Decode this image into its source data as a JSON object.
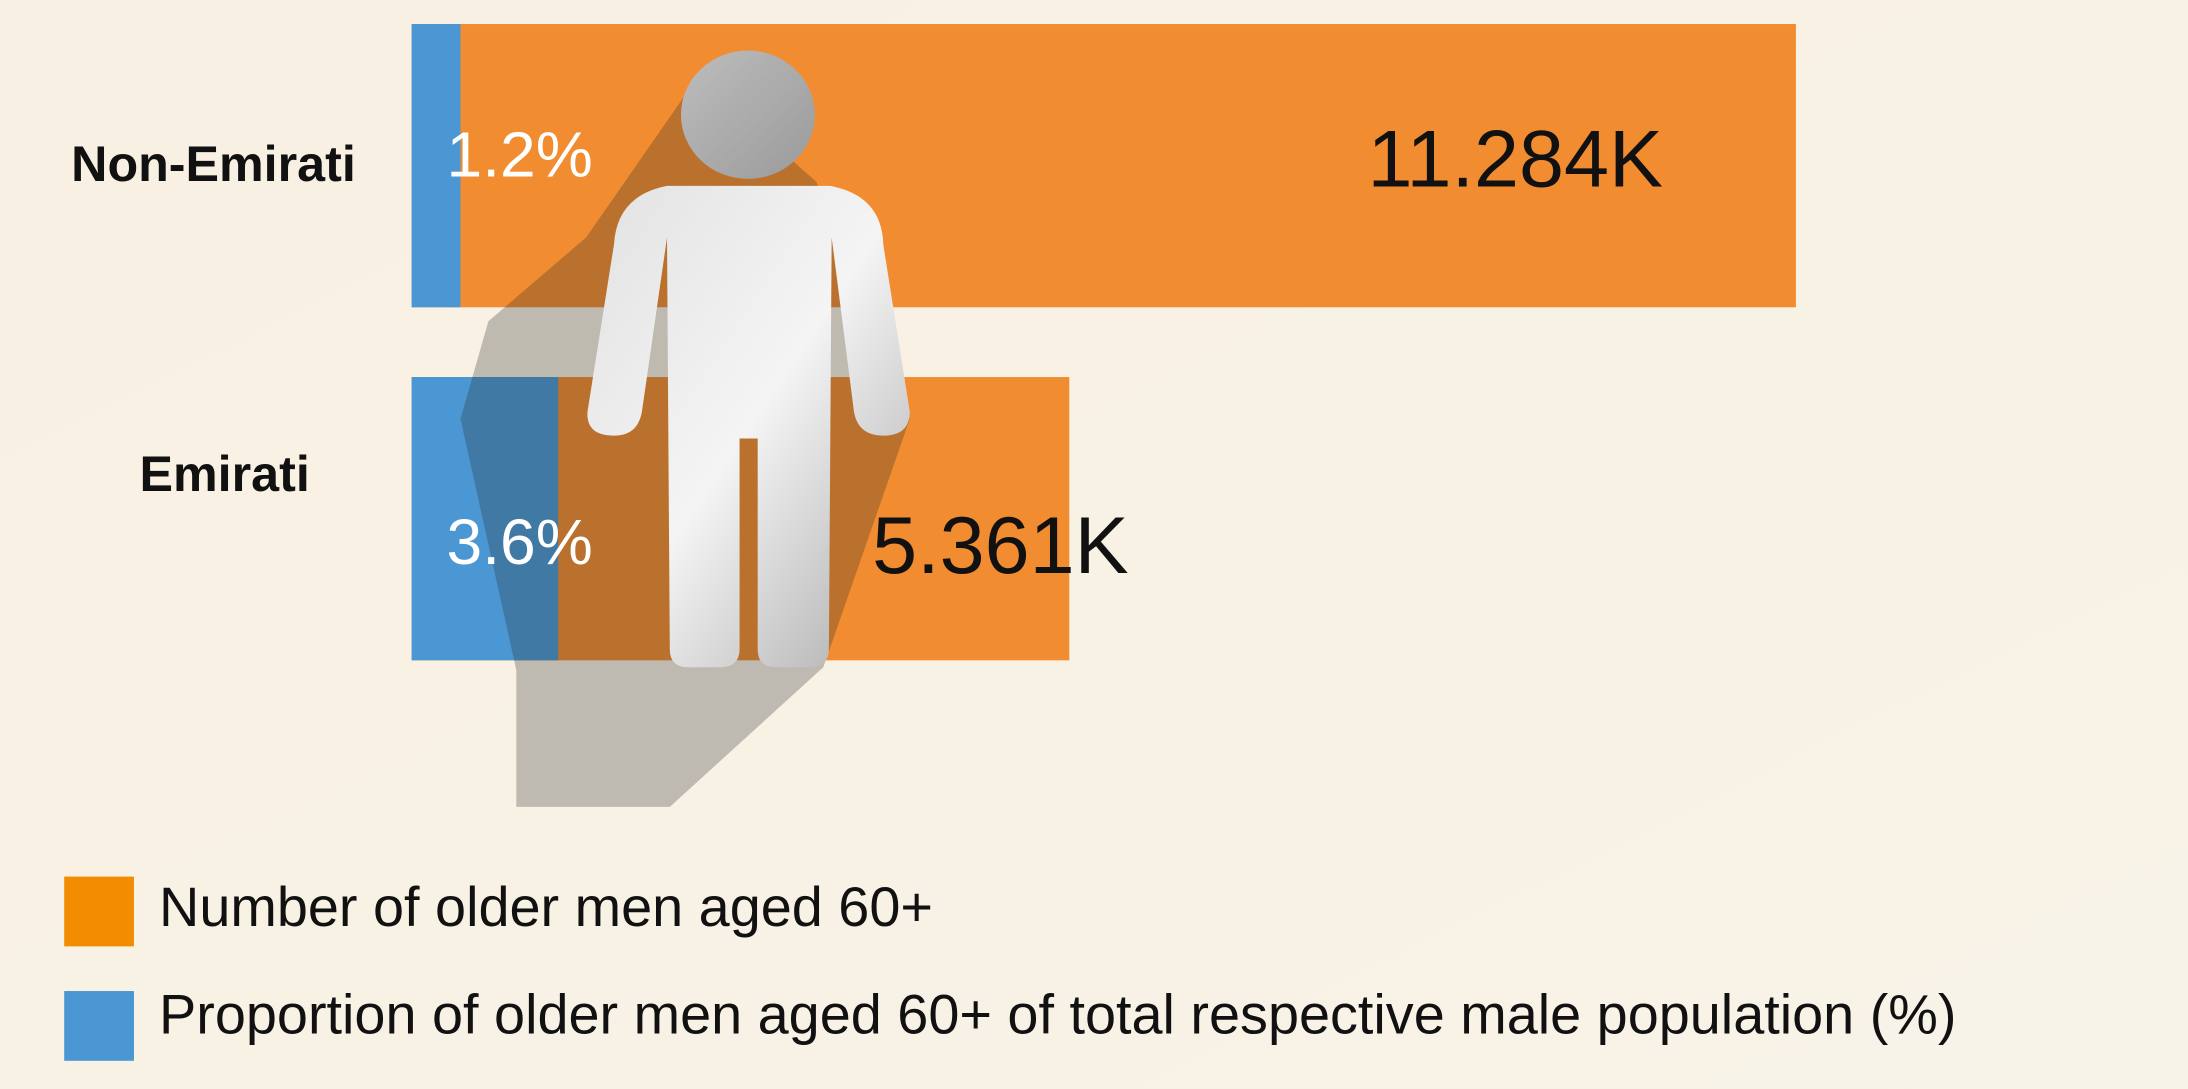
{
  "chart_data": {
    "type": "bar",
    "categories": [
      "Non-Emirati",
      "Emirati"
    ],
    "series": [
      {
        "name": "Number of older men aged 60+",
        "color": "#f28c30",
        "values": [
          11284,
          5361
        ],
        "value_labels": [
          "11.284K",
          "5.361K"
        ]
      },
      {
        "name": "Proportion of older men aged 60+ of total respective male population (%)",
        "color": "#4a97d4",
        "values": [
          1.2,
          3.6
        ],
        "value_labels": [
          "1.2%",
          "3.6%"
        ]
      }
    ],
    "legend_colors": [
      "#f28c00",
      "#4a97d4"
    ]
  }
}
